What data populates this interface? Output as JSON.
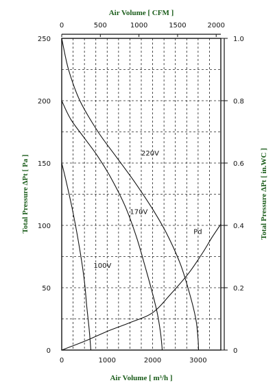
{
  "chart_data": {
    "type": "line",
    "title_top": "Air Volume  [ CFM ]",
    "xlabel": "Air Volume  [ m³/h ]",
    "ylabel": "Total Pressure ΔPt  [ Pa ]",
    "y2label": "Total Pressure ΔPt  [ in.WC ]",
    "x_ticks": [
      "0",
      "1000",
      "2000",
      "3000"
    ],
    "x_top_ticks": [
      "0",
      "500",
      "1000",
      "1500",
      "2000"
    ],
    "y_ticks": [
      "0",
      "50",
      "100",
      "150",
      "200",
      "250"
    ],
    "y2_ticks": [
      "0",
      "0.2",
      "0.4",
      "0.6",
      "0.8",
      "1.0"
    ],
    "xlim": [
      0,
      3500
    ],
    "ylim": [
      0,
      250
    ],
    "grid": true,
    "series": [
      {
        "name": "220V",
        "x": [
          0,
          150,
          400,
          800,
          1200,
          1600,
          2000,
          2300,
          2600,
          2800,
          2950,
          3000,
          3010
        ],
        "y": [
          250,
          225,
          200,
          175,
          155,
          135,
          113,
          94,
          70,
          47,
          25,
          8,
          0
        ]
      },
      {
        "name": "170V",
        "x": [
          0,
          200,
          500,
          800,
          1100,
          1400,
          1650,
          1850,
          2000,
          2100,
          2170,
          2200,
          2210
        ],
        "y": [
          200,
          185,
          170,
          155,
          137,
          115,
          90,
          65,
          45,
          30,
          15,
          5,
          0
        ]
      },
      {
        "name": "100V",
        "x": [
          0,
          100,
          250,
          400,
          500,
          550,
          600,
          630,
          640
        ],
        "y": [
          150,
          135,
          110,
          80,
          55,
          35,
          18,
          5,
          0
        ]
      },
      {
        "name": "Pd",
        "x": [
          0,
          500,
          1000,
          1500,
          2000,
          2400,
          2800,
          3100,
          3300,
          3500
        ],
        "y": [
          0,
          7,
          15,
          22,
          30,
          45,
          62,
          78,
          90,
          101
        ]
      }
    ]
  }
}
